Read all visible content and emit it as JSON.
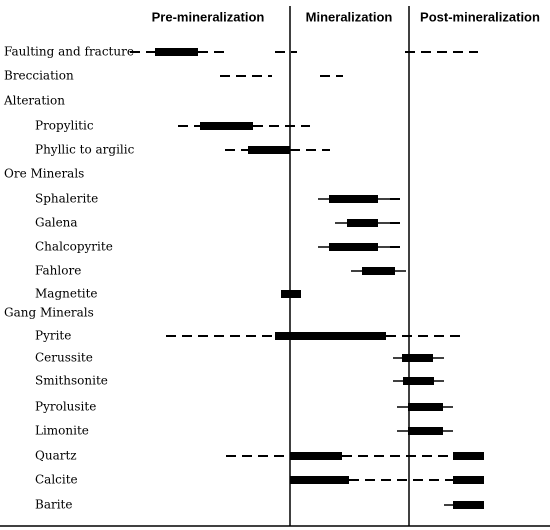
{
  "header": {
    "columns": [
      "Pre-mineralization",
      "Mineralization",
      "Post-mineralization"
    ]
  },
  "rows": [
    {
      "label": "Faulting and fracture"
    },
    {
      "label": "Brecciation"
    },
    {
      "label": "Alteration",
      "items": [
        "Propylitic",
        "Phyllic to argilic"
      ]
    },
    {
      "label": "Ore Minerals",
      "items": [
        "Sphalerite",
        "Galena",
        "Chalcopyrite",
        "Fahlore",
        "Magnetite"
      ]
    },
    {
      "label": "Gang Minerals",
      "items": [
        "Pyrite",
        "Cerussite",
        "Smithsonite",
        "Pyrolusite",
        "Limonite",
        "Quartz",
        "Calcite",
        "Barite"
      ]
    }
  ]
}
